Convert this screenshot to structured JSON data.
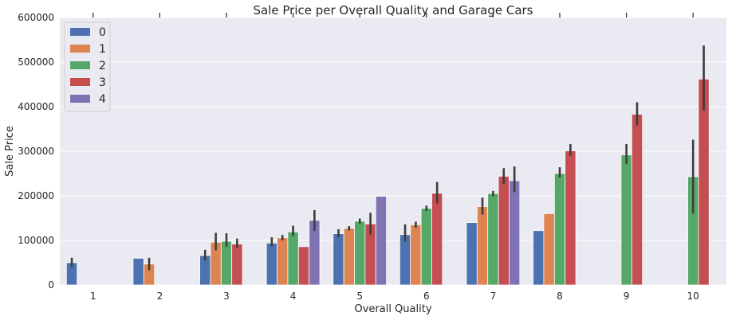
{
  "chart_data": {
    "type": "bar",
    "title": "Sale Price per Overall Quality and Garage Cars",
    "xlabel": "Overall Quality",
    "ylabel": "Sale Price",
    "categories": [
      "1",
      "2",
      "3",
      "4",
      "5",
      "6",
      "7",
      "8",
      "9",
      "10"
    ],
    "y_ticks": [
      "0",
      "100000",
      "200000",
      "300000",
      "400000",
      "500000",
      "600000"
    ],
    "ylim": [
      0,
      600000
    ],
    "grid": true,
    "legend_position": "top-left",
    "series": [
      {
        "name": "0",
        "color": "#4C72B0",
        "values": [
          50000,
          60000,
          66000,
          94000,
          115000,
          113000,
          140000,
          122000,
          null,
          null
        ],
        "err_low": [
          40000,
          null,
          55000,
          87000,
          107000,
          97000,
          null,
          null,
          null,
          null
        ],
        "err_high": [
          61000,
          null,
          79000,
          107000,
          125000,
          136000,
          null,
          null,
          null,
          null
        ]
      },
      {
        "name": "1",
        "color": "#DD8452",
        "values": [
          null,
          47000,
          96000,
          106000,
          127000,
          135000,
          176000,
          160000,
          null,
          null
        ],
        "err_low": [
          null,
          33000,
          78000,
          100000,
          122000,
          128000,
          158000,
          null,
          null,
          null
        ],
        "err_high": [
          null,
          61000,
          117000,
          112000,
          132000,
          142000,
          196000,
          null,
          null,
          null
        ]
      },
      {
        "name": "2",
        "color": "#55A868",
        "values": [
          null,
          null,
          98000,
          119000,
          143000,
          172000,
          205000,
          250000,
          292000,
          243000
        ],
        "err_low": [
          null,
          null,
          86000,
          110000,
          137000,
          166000,
          199000,
          241000,
          272000,
          160000
        ],
        "err_high": [
          null,
          null,
          116000,
          133000,
          149000,
          178000,
          211000,
          264000,
          316000,
          326000
        ]
      },
      {
        "name": "3",
        "color": "#C44E52",
        "values": [
          null,
          null,
          92000,
          86000,
          137000,
          206000,
          244000,
          301000,
          383000,
          462000
        ],
        "err_low": [
          null,
          null,
          83000,
          null,
          113000,
          183000,
          227000,
          290000,
          358000,
          391000
        ],
        "err_high": [
          null,
          null,
          104000,
          null,
          162000,
          231000,
          262000,
          316000,
          410000,
          537000
        ]
      },
      {
        "name": "4",
        "color": "#8172B3",
        "values": [
          null,
          null,
          null,
          145000,
          199000,
          null,
          234000,
          null,
          null,
          null
        ],
        "err_low": [
          null,
          null,
          null,
          121000,
          null,
          null,
          208000,
          null,
          null,
          null
        ],
        "err_high": [
          null,
          null,
          null,
          168000,
          null,
          null,
          266000,
          null,
          null,
          null
        ]
      }
    ]
  }
}
